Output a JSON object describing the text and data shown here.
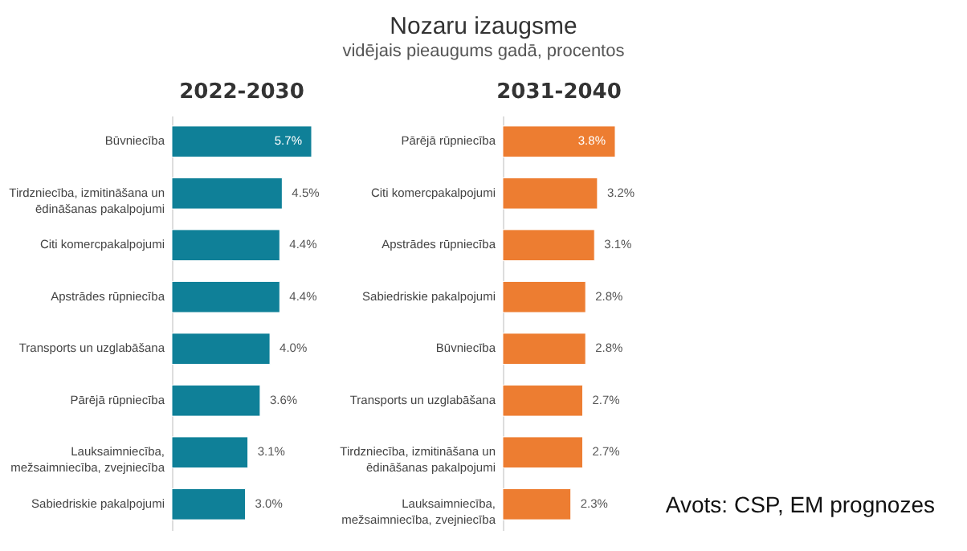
{
  "chart_data": [
    {
      "type": "bar",
      "orientation": "horizontal",
      "title": "2022-2030",
      "annotations": [
        "Nozaru izaugsme",
        "vidējais pieaugums gadā, procentos"
      ],
      "categories": [
        "Būvniecība",
        "Tirdzniecība, izmitināšana un ēdināšanas pakalpojumi",
        "Citi komercpakalpojumi",
        "Apstrādes rūpniecība",
        "Transports un uzglabāšana",
        "Pārējā rūpniecība",
        "Lauksaimniecība, mežsaimniecība, zvejniecība",
        "Sabiedriskie pakalpojumi"
      ],
      "values": [
        5.7,
        4.5,
        4.4,
        4.4,
        4.0,
        3.6,
        3.1,
        3.0
      ],
      "value_labels": [
        "5.7%",
        "4.5%",
        "4.4%",
        "4.4%",
        "4.0%",
        "3.6%",
        "3.1%",
        "3.0%"
      ],
      "color": "#0f8098"
    },
    {
      "type": "bar",
      "orientation": "horizontal",
      "title": "2031-2040",
      "annotations": [
        "Avots: CSP, EM prognozes"
      ],
      "categories": [
        "Pārējā rūpniecība",
        "Citi komercpakalpojumi",
        "Apstrādes rūpniecība",
        "Sabiedriskie pakalpojumi",
        "Būvniecība",
        "Transports un uzglabāšana",
        "Tirdzniecība, izmitināšana un ēdināšanas pakalpojumi",
        "Lauksaimniecība, mežsaimniecība, zvejniecība"
      ],
      "values": [
        3.8,
        3.2,
        3.1,
        2.8,
        2.8,
        2.7,
        2.7,
        2.3
      ],
      "value_labels": [
        "3.8%",
        "3.2%",
        "3.1%",
        "2.8%",
        "2.8%",
        "2.7%",
        "2.7%",
        "2.3%"
      ],
      "color": "#ed7d31"
    }
  ]
}
